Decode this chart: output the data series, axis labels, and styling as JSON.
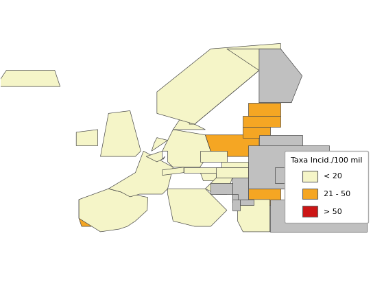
{
  "legend_title": "Taxa Incid./100 mil",
  "legend_labels": [
    "< 20",
    "21 - 50",
    "> 50"
  ],
  "legend_colors": [
    "#F5F5C8",
    "#F5A623",
    "#CC1515"
  ],
  "country_colors": {
    "AUT": "#F5F5C8",
    "BEL": "#F5F5C8",
    "BGR": "#F5A623",
    "CYP": "#F5F5C8",
    "CZE": "#F5F5C8",
    "DEU": "#F5F5C8",
    "DNK": "#F5F5C8",
    "ESP": "#F5F5C8",
    "EST": "#F5A623",
    "FIN": "#F5F5C8",
    "FRA": "#F5F5C8",
    "GBR": "#F5F5C8",
    "GRC": "#F5F5C8",
    "HRV": "#F5F5C8",
    "HUN": "#F5F5C8",
    "IRL": "#F5F5C8",
    "ITA": "#F5F5C8",
    "LTU": "#F5A623",
    "LUX": "#F5F5C8",
    "LVA": "#F5A623",
    "MLT": "#F5F5C8",
    "NLD": "#F5F5C8",
    "POL": "#F5A623",
    "PRT": "#F5A623",
    "ROU": "#CC1515",
    "SVK": "#F5F5C8",
    "SVN": "#F5F5C8",
    "SWE": "#F5F5C8",
    "ISL": "#F5F5C8",
    "NOR": "#F5F5C8",
    "CHE": "#F5F5C8",
    "LIE": "#F5F5C8",
    "ALB": "#C0C0C0",
    "BIH": "#C0C0C0",
    "BLR": "#C0C0C0",
    "MDA": "#C0C0C0",
    "MKD": "#C0C0C0",
    "MNE": "#C0C0C0",
    "RUS": "#C0C0C0",
    "SRB": "#C0C0C0",
    "TUR": "#C0C0C0",
    "UKR": "#C0C0C0",
    "XKX": "#C0C0C0",
    "AND": "#F5F5C8",
    "MCO": "#F5F5C8",
    "SMR": "#F5F5C8",
    "VAT": "#F5F5C8"
  },
  "non_eu_color": "#C0C0C0",
  "border_color": "#444444",
  "background_color": "#ffffff",
  "map_xlim": [
    -24,
    45
  ],
  "map_ylim": [
    34,
    71
  ],
  "figsize": [
    5.44,
    4.17
  ],
  "dpi": 100
}
